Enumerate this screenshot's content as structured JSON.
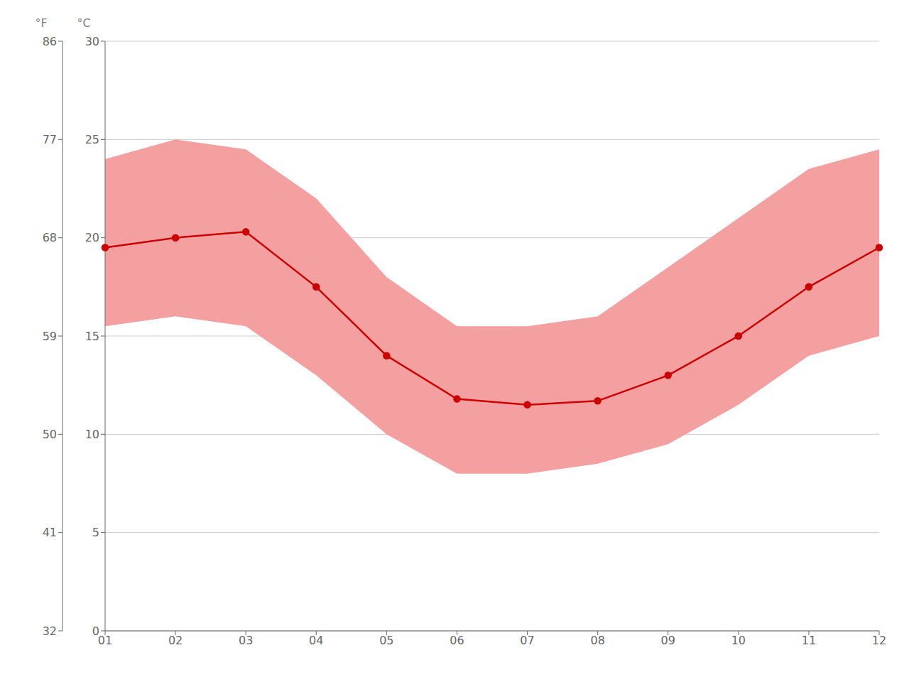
{
  "chart_data": {
    "type": "line",
    "categories": [
      "01",
      "02",
      "03",
      "04",
      "05",
      "06",
      "07",
      "08",
      "09",
      "10",
      "11",
      "12"
    ],
    "series": [
      {
        "type": "band",
        "color": "#f4a0a0",
        "low": [
          15.5,
          16.0,
          15.5,
          13.0,
          10.0,
          8.0,
          8.0,
          8.5,
          9.5,
          11.5,
          14.0,
          15.0
        ],
        "high": [
          24.0,
          25.0,
          24.5,
          22.0,
          18.0,
          15.5,
          15.5,
          16.0,
          18.5,
          21.0,
          23.5,
          24.5
        ]
      },
      {
        "type": "line",
        "color": "#cc0000",
        "marker": "circle",
        "values": [
          19.5,
          20.0,
          20.3,
          17.5,
          14.0,
          11.8,
          11.5,
          11.7,
          13.0,
          15.0,
          17.5,
          19.5
        ]
      }
    ],
    "ylim": [
      0,
      30
    ],
    "yticks": [
      0,
      5,
      10,
      15,
      20,
      25,
      30
    ],
    "ylabel": "°C",
    "y2lim": [
      32,
      86
    ],
    "y2ticks": [
      32,
      41,
      50,
      59,
      68,
      77,
      86
    ],
    "y2label": "°F",
    "grid": true
  }
}
